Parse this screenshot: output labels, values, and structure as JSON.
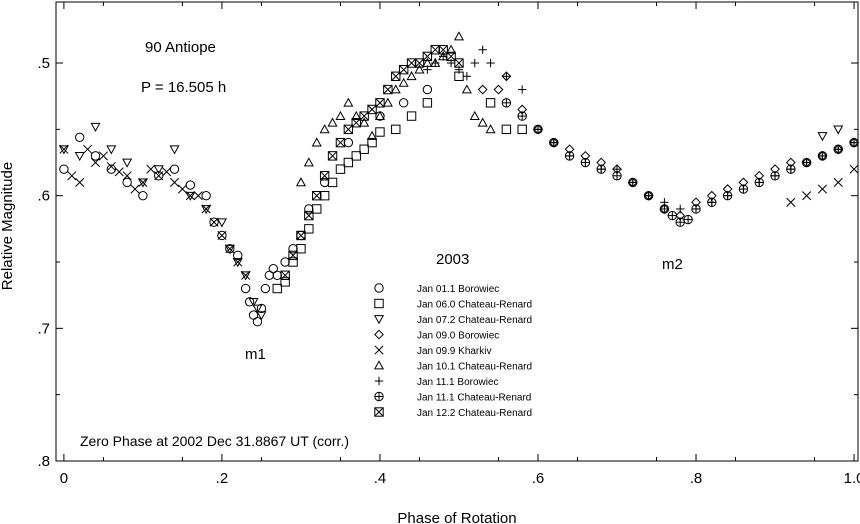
{
  "chart_data": {
    "type": "scatter",
    "title": "",
    "xlabel": "Phase of Rotation",
    "ylabel": "Relative Magnitude",
    "xlim": [
      -0.01,
      1.005
    ],
    "ylim": [
      0.8,
      0.454
    ],
    "y_inverted": true,
    "grid": false,
    "legend_position": "center",
    "x_ticks": [
      {
        "value": 0.0,
        "label": "0"
      },
      {
        "value": 0.2,
        "label": ".2"
      },
      {
        "value": 0.4,
        "label": ".4"
      },
      {
        "value": 0.6,
        "label": ".6"
      },
      {
        "value": 0.8,
        "label": ".8"
      },
      {
        "value": 1.0,
        "label": "1.0"
      }
    ],
    "y_ticks": [
      {
        "value": 0.5,
        "label": ".5"
      },
      {
        "value": 0.6,
        "label": ".6"
      },
      {
        "value": 0.7,
        "label": ".7"
      },
      {
        "value": 0.8,
        "label": ".8"
      }
    ],
    "annotations": {
      "object": "90 Antiope",
      "period": "P = 16.505 h",
      "year": "2003",
      "minimum_1": "m1",
      "minimum_2": "m2",
      "zero_phase": "Zero Phase at 2002 Dec 31.8867 UT (corr.)"
    },
    "series": [
      {
        "name": "Jan 01.1 Borowiec",
        "marker": "circle",
        "x": [
          0.0,
          0.02,
          0.04,
          0.06,
          0.08,
          0.1,
          0.12,
          0.14,
          0.16,
          0.18,
          0.19,
          0.2,
          0.21,
          0.22,
          0.23,
          0.235,
          0.24,
          0.245,
          0.25,
          0.255,
          0.26,
          0.265,
          0.27,
          0.28,
          0.29,
          0.3,
          0.31,
          0.33,
          0.36,
          0.4,
          0.43,
          0.46
        ],
        "y": [
          0.58,
          0.556,
          0.57,
          0.58,
          0.59,
          0.6,
          0.585,
          0.58,
          0.592,
          0.6,
          0.62,
          0.63,
          0.64,
          0.645,
          0.67,
          0.68,
          0.69,
          0.695,
          0.685,
          0.67,
          0.66,
          0.655,
          0.66,
          0.65,
          0.64,
          0.63,
          0.61,
          0.59,
          0.56,
          0.54,
          0.53,
          0.52
        ]
      },
      {
        "name": "Jan 06.0 Chateau-Renard",
        "marker": "square",
        "x": [
          0.27,
          0.28,
          0.29,
          0.3,
          0.31,
          0.32,
          0.33,
          0.34,
          0.35,
          0.36,
          0.37,
          0.38,
          0.39,
          0.4,
          0.42,
          0.44,
          0.46,
          0.5,
          0.54,
          0.56,
          0.58
        ],
        "y": [
          0.67,
          0.665,
          0.65,
          0.64,
          0.625,
          0.61,
          0.6,
          0.59,
          0.58,
          0.575,
          0.57,
          0.565,
          0.56,
          0.552,
          0.55,
          0.54,
          0.53,
          0.51,
          0.53,
          0.55,
          0.55
        ]
      },
      {
        "name": "Jan 07.2 Chateau-Renard",
        "marker": "triangle-down",
        "x": [
          0.0,
          0.02,
          0.04,
          0.06,
          0.08,
          0.1,
          0.12,
          0.14,
          0.16,
          0.18,
          0.2,
          0.21,
          0.22,
          0.23,
          0.24,
          0.245,
          0.25,
          0.96,
          0.98
        ],
        "y": [
          0.565,
          0.57,
          0.548,
          0.565,
          0.575,
          0.59,
          0.58,
          0.565,
          0.6,
          0.61,
          0.62,
          0.64,
          0.65,
          0.66,
          0.68,
          0.685,
          0.69,
          0.555,
          0.55
        ]
      },
      {
        "name": "Jan 09.0 Borowiec",
        "marker": "diamond",
        "x": [
          0.53,
          0.55,
          0.56,
          0.58,
          0.6,
          0.62,
          0.64,
          0.66,
          0.68,
          0.7,
          0.72,
          0.74,
          0.76,
          0.78,
          0.8,
          0.82,
          0.84,
          0.86,
          0.88,
          0.9,
          0.92,
          0.94,
          0.96,
          0.98,
          1.0
        ],
        "y": [
          0.52,
          0.52,
          0.51,
          0.535,
          0.55,
          0.56,
          0.565,
          0.57,
          0.575,
          0.58,
          0.59,
          0.6,
          0.61,
          0.615,
          0.605,
          0.6,
          0.595,
          0.59,
          0.585,
          0.58,
          0.575,
          0.575,
          0.57,
          0.565,
          0.56
        ]
      },
      {
        "name": "Jan 09.9 Kharkiv",
        "marker": "x",
        "x": [
          0.0,
          0.01,
          0.02,
          0.03,
          0.04,
          0.05,
          0.06,
          0.07,
          0.08,
          0.09,
          0.1,
          0.11,
          0.12,
          0.13,
          0.14,
          0.15,
          0.16,
          0.17,
          0.18,
          0.19,
          0.2,
          0.21,
          0.22,
          0.23,
          0.92,
          0.94,
          0.96,
          0.98,
          1.0
        ],
        "y": [
          0.565,
          0.585,
          0.59,
          0.565,
          0.575,
          0.57,
          0.578,
          0.582,
          0.585,
          0.595,
          0.59,
          0.58,
          0.585,
          0.582,
          0.59,
          0.595,
          0.6,
          0.6,
          0.61,
          0.62,
          0.63,
          0.64,
          0.65,
          0.66,
          0.605,
          0.6,
          0.595,
          0.59,
          0.58
        ]
      },
      {
        "name": "Jan 10.1 Chateau-Renard",
        "marker": "triangle-up",
        "x": [
          0.3,
          0.31,
          0.32,
          0.33,
          0.34,
          0.35,
          0.36,
          0.37,
          0.38,
          0.39,
          0.4,
          0.41,
          0.42,
          0.43,
          0.44,
          0.45,
          0.46,
          0.47,
          0.48,
          0.49,
          0.5,
          0.51,
          0.52,
          0.53,
          0.54
        ],
        "y": [
          0.59,
          0.575,
          0.56,
          0.55,
          0.545,
          0.54,
          0.53,
          0.54,
          0.545,
          0.555,
          0.54,
          0.53,
          0.52,
          0.515,
          0.51,
          0.505,
          0.5,
          0.5,
          0.495,
          0.49,
          0.48,
          0.52,
          0.54,
          0.545,
          0.55
        ]
      },
      {
        "name": "Jan 11.1 Borowiec",
        "marker": "plus",
        "x": [
          0.46,
          0.47,
          0.48,
          0.49,
          0.5,
          0.51,
          0.52,
          0.53,
          0.54,
          0.56,
          0.58,
          0.6,
          0.62,
          0.64,
          0.66,
          0.68,
          0.7,
          0.72,
          0.74,
          0.76,
          0.78,
          0.8,
          0.82,
          0.84,
          0.86,
          0.88,
          0.9,
          0.92,
          0.94,
          0.96,
          0.98,
          1.0
        ],
        "y": [
          0.505,
          0.5,
          0.495,
          0.5,
          0.505,
          0.51,
          0.5,
          0.49,
          0.5,
          0.51,
          0.52,
          0.55,
          0.56,
          0.57,
          0.575,
          0.58,
          0.58,
          0.59,
          0.6,
          0.605,
          0.61,
          0.61,
          0.605,
          0.6,
          0.595,
          0.59,
          0.585,
          0.58,
          0.575,
          0.57,
          0.565,
          0.56
        ]
      },
      {
        "name": "Jan 11.1 Chateau-Renard",
        "marker": "circle-plus",
        "x": [
          0.56,
          0.58,
          0.6,
          0.62,
          0.64,
          0.66,
          0.68,
          0.7,
          0.72,
          0.74,
          0.76,
          0.77,
          0.78,
          0.79,
          0.8,
          0.82,
          0.84,
          0.86,
          0.88,
          0.9,
          0.92,
          0.94,
          0.96,
          0.98,
          1.0
        ],
        "y": [
          0.53,
          0.54,
          0.55,
          0.56,
          0.57,
          0.575,
          0.58,
          0.585,
          0.59,
          0.6,
          0.61,
          0.615,
          0.62,
          0.618,
          0.61,
          0.605,
          0.6,
          0.595,
          0.59,
          0.585,
          0.58,
          0.575,
          0.57,
          0.565,
          0.56
        ]
      },
      {
        "name": "Jan 12.2 Chateau-Renard",
        "marker": "square-x",
        "x": [
          0.28,
          0.29,
          0.3,
          0.31,
          0.32,
          0.33,
          0.34,
          0.35,
          0.36,
          0.37,
          0.38,
          0.39,
          0.4,
          0.41,
          0.42,
          0.43,
          0.44,
          0.45,
          0.46,
          0.47,
          0.48,
          0.49,
          0.5
        ],
        "y": [
          0.66,
          0.645,
          0.63,
          0.615,
          0.6,
          0.585,
          0.57,
          0.56,
          0.55,
          0.545,
          0.54,
          0.535,
          0.53,
          0.52,
          0.51,
          0.505,
          0.5,
          0.5,
          0.495,
          0.49,
          0.49,
          0.495,
          0.5
        ]
      }
    ]
  }
}
